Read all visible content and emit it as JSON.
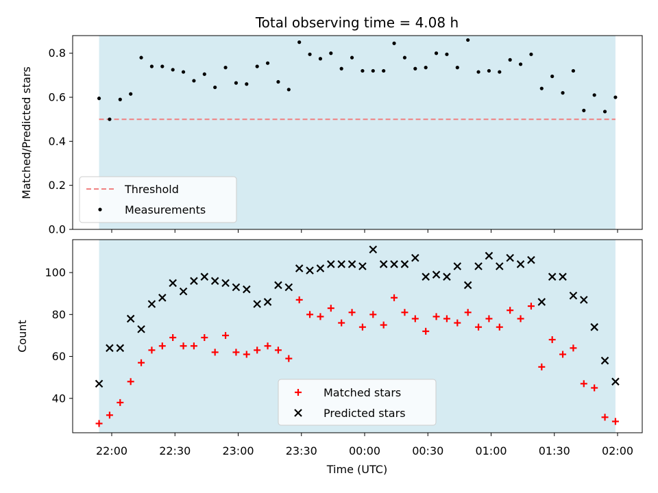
{
  "chart_data": [
    {
      "type": "scatter",
      "title": "Total observing time = 4.08 h",
      "ylabel": "Matched/Predicted stars",
      "ylim": [
        0,
        0.88
      ],
      "yticks": [
        "0.0",
        "0.2",
        "0.4",
        "0.6",
        "0.8"
      ],
      "threshold": 0.5,
      "shaded_span": [
        "21:54",
        "01:59"
      ],
      "colors": {
        "shade": "#add8e6",
        "threshold": "#f08080",
        "points": "#000000"
      },
      "legend": {
        "placement": "lower-left",
        "entries": [
          "Threshold",
          "Measurements"
        ]
      },
      "series": [
        {
          "name": "Measurements",
          "x": [
            "21:54",
            "21:59",
            "22:04",
            "22:09",
            "22:14",
            "22:19",
            "22:24",
            "22:29",
            "22:34",
            "22:39",
            "22:44",
            "22:49",
            "22:54",
            "22:59",
            "23:04",
            "23:09",
            "23:14",
            "23:19",
            "23:24",
            "23:29",
            "23:34",
            "23:39",
            "23:44",
            "23:49",
            "23:54",
            "23:59",
            "00:04",
            "00:09",
            "00:14",
            "00:19",
            "00:24",
            "00:29",
            "00:34",
            "00:39",
            "00:44",
            "00:49",
            "00:54",
            "00:59",
            "01:04",
            "01:09",
            "01:14",
            "01:19",
            "01:24",
            "01:29",
            "01:34",
            "01:39",
            "01:44",
            "01:49",
            "01:54",
            "01:59"
          ],
          "y": [
            0.595,
            0.5,
            0.59,
            0.615,
            0.78,
            0.74,
            0.74,
            0.725,
            0.715,
            0.675,
            0.705,
            0.645,
            0.735,
            0.665,
            0.66,
            0.74,
            0.755,
            0.67,
            0.635,
            0.85,
            0.795,
            0.775,
            0.8,
            0.73,
            0.78,
            0.72,
            0.72,
            0.72,
            0.845,
            0.78,
            0.73,
            0.735,
            0.8,
            0.795,
            0.735,
            0.86,
            0.715,
            0.72,
            0.715,
            0.77,
            0.75,
            0.795,
            0.64,
            0.695,
            0.62,
            0.72,
            0.54,
            0.61,
            0.535,
            0.6
          ]
        }
      ]
    },
    {
      "type": "scatter",
      "xlabel": "Time (UTC)",
      "ylabel": "Count",
      "ylim": [
        23.6,
        115.7
      ],
      "yticks": [
        "40",
        "60",
        "80",
        "100"
      ],
      "xticks": [
        "22:00",
        "22:30",
        "23:00",
        "23:30",
        "00:00",
        "00:30",
        "01:00",
        "01:30",
        "02:00"
      ],
      "shaded_span": [
        "21:54",
        "01:59"
      ],
      "colors": {
        "shade": "#add8e6",
        "matched": "#ff0000",
        "predicted": "#000000"
      },
      "legend": {
        "placement": "lower-center",
        "entries": [
          "Matched stars",
          "Predicted stars"
        ]
      },
      "x": [
        "21:54",
        "21:59",
        "22:04",
        "22:09",
        "22:14",
        "22:19",
        "22:24",
        "22:29",
        "22:34",
        "22:39",
        "22:44",
        "22:49",
        "22:54",
        "22:59",
        "23:04",
        "23:09",
        "23:14",
        "23:19",
        "23:24",
        "23:29",
        "23:34",
        "23:39",
        "23:44",
        "23:49",
        "23:54",
        "23:59",
        "00:04",
        "00:09",
        "00:14",
        "00:19",
        "00:24",
        "00:29",
        "00:34",
        "00:39",
        "00:44",
        "00:49",
        "00:54",
        "00:59",
        "01:04",
        "01:09",
        "01:14",
        "01:19",
        "01:24",
        "01:29",
        "01:34",
        "01:39",
        "01:44",
        "01:49",
        "01:54",
        "01:59"
      ],
      "series": [
        {
          "name": "Matched stars",
          "values": [
            28,
            32,
            38,
            48,
            57,
            63,
            65,
            69,
            65,
            65,
            69,
            62,
            70,
            62,
            61,
            63,
            65,
            63,
            59,
            87,
            80,
            79,
            83,
            76,
            81,
            74,
            80,
            75,
            88,
            81,
            78,
            72,
            79,
            78,
            76,
            81,
            74,
            78,
            74,
            82,
            78,
            84,
            55,
            68,
            61,
            64,
            47,
            45,
            31,
            29
          ]
        },
        {
          "name": "Predicted stars",
          "values": [
            47,
            64,
            64,
            78,
            73,
            85,
            88,
            95,
            91,
            96,
            98,
            96,
            95,
            93,
            92,
            85,
            86,
            94,
            93,
            102,
            101,
            102,
            104,
            104,
            104,
            103,
            111,
            104,
            104,
            104,
            107,
            98,
            99,
            98,
            103,
            94,
            103,
            108,
            103,
            107,
            104,
            106,
            86,
            98,
            98,
            89,
            87,
            74,
            58,
            48
          ]
        }
      ]
    }
  ]
}
